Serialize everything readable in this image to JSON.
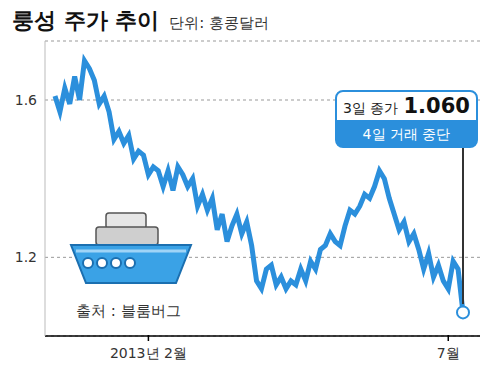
{
  "chart_data": {
    "type": "line",
    "title": "룽성 주가 추이",
    "subtitle": "단위: 홍콩달러",
    "source": "출처 : 블룸버그",
    "color": "#2b8fdc",
    "grid": true,
    "categories": [
      null,
      null,
      null,
      null,
      null,
      null,
      null,
      null,
      null,
      null,
      null,
      null,
      null,
      null,
      null,
      null,
      null,
      null,
      null,
      "2013년 2월",
      null,
      null,
      null,
      null,
      null,
      null,
      null,
      null,
      null,
      null,
      null,
      null,
      null,
      null,
      null,
      null,
      null,
      null,
      null,
      null,
      null,
      null,
      null,
      null,
      null,
      null,
      null,
      null,
      null,
      null,
      null,
      null,
      null,
      null,
      null,
      null,
      null,
      null,
      null,
      null,
      null,
      null,
      null,
      null,
      null,
      null,
      null,
      null,
      null,
      null,
      null,
      null,
      null,
      null,
      null,
      null,
      null,
      null,
      null,
      null,
      "7월",
      null,
      null,
      null
    ],
    "values": [
      1.61,
      1.57,
      1.63,
      1.59,
      1.66,
      1.6,
      1.7,
      1.68,
      1.65,
      1.59,
      1.61,
      1.57,
      1.5,
      1.52,
      1.49,
      1.51,
      1.45,
      1.47,
      1.46,
      1.41,
      1.43,
      1.42,
      1.38,
      1.42,
      1.37,
      1.43,
      1.41,
      1.38,
      1.4,
      1.33,
      1.36,
      1.32,
      1.35,
      1.27,
      1.31,
      1.24,
      1.28,
      1.31,
      1.26,
      1.29,
      1.23,
      1.14,
      1.12,
      1.17,
      1.18,
      1.13,
      1.15,
      1.12,
      1.14,
      1.13,
      1.17,
      1.14,
      1.19,
      1.17,
      1.22,
      1.23,
      1.26,
      1.24,
      1.23,
      1.28,
      1.32,
      1.31,
      1.33,
      1.36,
      1.35,
      1.38,
      1.42,
      1.4,
      1.35,
      1.31,
      1.27,
      1.29,
      1.24,
      1.26,
      1.22,
      1.17,
      1.21,
      1.15,
      1.18,
      1.14,
      1.12,
      1.19,
      1.17,
      1.06
    ],
    "ylim": [
      1.0,
      1.75
    ],
    "yticks": [
      1.2,
      1.6
    ],
    "annotation": {
      "text": "3일 종가",
      "value": 1.06,
      "value_label": "1.060",
      "note": "4일 거래 중단"
    }
  }
}
